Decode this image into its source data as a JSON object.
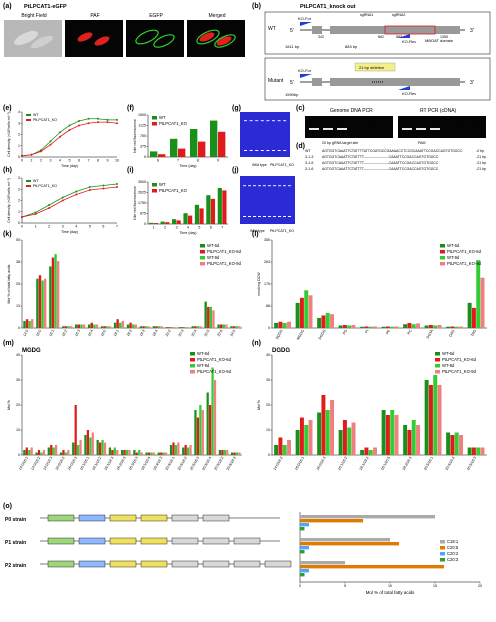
{
  "figure": {
    "a": {
      "panel": "(a)",
      "title": "PtLPCAT1-eGFP",
      "cols": [
        "Bright Field",
        "PAF",
        "EGFP",
        "Merged"
      ]
    },
    "b": {
      "panel": "(b)",
      "title": "PtLPCAT1_knock out",
      "wt": "WT",
      "mutant": "Mutant",
      "five": "5'",
      "three": "3'",
      "ko_for": "KO-For",
      "ko_rev": "KO-Rev",
      "sg1": "sgRNA1",
      "sg2": "sgRNA2",
      "mboat": "MBOAT  domain",
      "n342": "342",
      "n862": "862",
      "n883": "883",
      "n1350": "1350",
      "bp1611": "1611 bp",
      "bp883": "883 bp",
      "deletion": "21 bp deletion",
      "bp1590": "1590bp"
    },
    "c": {
      "panel": "(c)",
      "genomic": "Genome DNA PCR",
      "rt": "RT PCR (cDNA)",
      "lanes": [
        "1",
        "2",
        "3",
        "4",
        "5",
        "6"
      ]
    },
    "d": {
      "panel": "(d)",
      "guide": "20 bp gRNA target site",
      "pam": "PAM",
      "rows": [
        {
          "name": "WT",
          "seq": "AGTGGTCAAATTCTATTTTATTCGATGCCGAAAACCTCCGCAAATTCCGACCAGTGTGGCC",
          "note": "-0 bp"
        },
        {
          "name": "3-1-3",
          "seq": "AGTGGTCAAATTCTATTTT----------------------CAAATTCCGACCAGTGTGGCC",
          "note": "-21 bp"
        },
        {
          "name": "3-1-5",
          "seq": "AGTGGTCAAATTCTATTTT----------------------CAAATTCCGACCAGTGTGGCC",
          "note": "-21 bp"
        },
        {
          "name": "3-1-6",
          "seq": "AGTGGTCAAATTCTATTTT----------------------CAAATTCCGACCAGTGTGGCC",
          "note": "-21 bp"
        }
      ]
    },
    "e": {
      "panel": "(e)",
      "xlabel": "Time (day)",
      "ylabel": "Cell density (×10⁶cells·ml⁻¹)"
    },
    "f": {
      "panel": "(f)",
      "xlabel": "Time (day)",
      "ylabel": "Nile red fluorescence"
    },
    "g": {
      "panel": "(g)",
      "wt": "Wild type",
      "ko": "PtLPCAT1_KO",
      "days": [
        "6d",
        "7d",
        "8d",
        "9d",
        "6d",
        "7d",
        "8d",
        "9d"
      ],
      "tag": "TAG"
    },
    "h": {
      "panel": "(h)",
      "xlabel": "Time (day)",
      "ylabel": "Cell density (×10⁶cells·ml⁻¹)"
    },
    "i": {
      "panel": "(i)",
      "xlabel": "Time (day)",
      "ylabel": "Nile red fluorescence"
    },
    "j": {
      "panel": "(j)",
      "wt": "Wild type",
      "ko": "PtLPCAT1_KO",
      "days": [
        "3d",
        "4d",
        "5d",
        "6d",
        "7d",
        "3d",
        "4d",
        "5d",
        "6d",
        "7d"
      ]
    },
    "k": {
      "panel": "(k)",
      "ylabel": "Mol % of total fatty acids"
    },
    "l": {
      "panel": "(l)",
      "ylabel": "nmol/mg DCW"
    },
    "m": {
      "panel": "(m)",
      "title": "MGDG",
      "ylabel": "Mol %"
    },
    "n": {
      "panel": "(n)",
      "title": "DGDG",
      "ylabel": "Mol %"
    },
    "o": {
      "panel": "(o)",
      "xlabel": "Mol % of total fatty acids",
      "strains": [
        "P0 strain",
        "P1 strain",
        "P2 strain"
      ],
      "legend": [
        "C18:1",
        "C20:5",
        "C20:2",
        "C20:3"
      ]
    }
  },
  "chart_data": [
    {
      "type": "line",
      "panel": "e",
      "xlabel": "Time (day)",
      "ylabel": "Cell density (×10⁶cells·ml⁻¹)",
      "x": [
        0,
        1,
        2,
        3,
        4,
        5,
        6,
        7,
        8,
        9,
        10
      ],
      "ylim": [
        0,
        4
      ],
      "series": [
        {
          "name": "WT",
          "values": [
            0.1,
            0.2,
            0.6,
            1.4,
            2.2,
            2.8,
            3.2,
            3.4,
            3.4,
            3.3,
            3.3
          ]
        },
        {
          "name": "PtLPCAT1_KO",
          "values": [
            0.1,
            0.2,
            0.5,
            1.1,
            1.8,
            2.4,
            2.8,
            3.0,
            3.1,
            3.1,
            3.0
          ]
        }
      ]
    },
    {
      "type": "bar",
      "panel": "f",
      "xlabel": "Time (day)",
      "ylabel": "Nile red fluorescence",
      "categories": [
        "6",
        "7",
        "8",
        "9"
      ],
      "ylim": [
        0,
        1500
      ],
      "series": [
        {
          "name": "WT",
          "values": [
            200,
            650,
            1000,
            1300
          ]
        },
        {
          "name": "PtLPCAT1_KO",
          "values": [
            100,
            300,
            550,
            900
          ]
        }
      ]
    },
    {
      "type": "line",
      "panel": "h",
      "xlabel": "Time (day)",
      "ylabel": "Cell density (×10⁶cells·ml⁻¹)",
      "x": [
        0,
        1,
        2,
        3,
        4,
        5,
        6,
        7
      ],
      "ylim": [
        0,
        3
      ],
      "series": [
        {
          "name": "WT",
          "values": [
            0.4,
            0.7,
            1.2,
            1.7,
            2.1,
            2.4,
            2.5,
            2.6
          ]
        },
        {
          "name": "PtLPCAT1_KO",
          "values": [
            0.4,
            0.6,
            1.0,
            1.5,
            1.9,
            2.2,
            2.3,
            2.4
          ]
        }
      ]
    },
    {
      "type": "bar",
      "panel": "i",
      "xlabel": "Time (day)",
      "ylabel": "Nile red fluorescence",
      "categories": [
        "1",
        "2",
        "3",
        "4",
        "5",
        "6",
        "7"
      ],
      "ylim": [
        0,
        3500
      ],
      "series": [
        {
          "name": "WT",
          "values": [
            100,
            200,
            400,
            900,
            1600,
            2400,
            3000
          ]
        },
        {
          "name": "PtLPCAT1_KO",
          "values": [
            80,
            150,
            300,
            700,
            1300,
            2100,
            2800
          ]
        }
      ]
    },
    {
      "type": "bar",
      "panel": "k",
      "ylabel": "Mol % of total fatty acids",
      "categories": [
        "14:0",
        "16:0",
        "16:1",
        "16:2",
        "16:3",
        "16:4",
        "18:0",
        "18:1",
        "18:2",
        "18:3",
        "18:4",
        "20:2",
        "20:3",
        "20:4",
        "20:5",
        "22:6",
        "24:0"
      ],
      "ylim": [
        0,
        50
      ],
      "series": [
        {
          "name": "WT-6d",
          "values": [
            4,
            28,
            35,
            1,
            2,
            2,
            1,
            3,
            2,
            1,
            1,
            0.5,
            0.5,
            1,
            15,
            2,
            1
          ]
        },
        {
          "name": "PtLPCAT1_KO-6d",
          "values": [
            5,
            30,
            40,
            1,
            2,
            3,
            1,
            5,
            3,
            1,
            1,
            0.5,
            0.5,
            1,
            12,
            2,
            1
          ]
        },
        {
          "name": "WT-9d",
          "values": [
            4,
            27,
            42,
            1,
            2,
            2,
            1,
            3,
            2,
            1,
            1,
            0.5,
            0.5,
            1,
            12,
            2,
            1
          ]
        },
        {
          "name": "PtLPCAT1_KO-9d",
          "values": [
            5,
            28,
            38,
            1,
            2,
            2,
            1,
            4,
            2,
            1,
            1,
            0.5,
            0.5,
            1,
            10,
            2,
            1
          ]
        }
      ]
    },
    {
      "type": "bar",
      "panel": "l",
      "ylabel": "nmol/mg DCW",
      "categories": [
        "SQDG",
        "MGDG",
        "DGDG",
        "PG",
        "PI",
        "PE",
        "PC",
        "DGTA",
        "DAG",
        "TAG"
      ],
      "ylim": [
        0,
        350
      ],
      "series": [
        {
          "name": "WT-6d",
          "values": [
            20,
            100,
            40,
            10,
            5,
            5,
            15,
            10,
            5,
            100
          ]
        },
        {
          "name": "PtLPCAT1_KO-6d",
          "values": [
            25,
            120,
            50,
            12,
            6,
            6,
            20,
            12,
            6,
            80
          ]
        },
        {
          "name": "WT-9d",
          "values": [
            20,
            150,
            60,
            10,
            5,
            5,
            15,
            10,
            5,
            270
          ]
        },
        {
          "name": "PtLPCAT1_KO-9d",
          "values": [
            25,
            130,
            55,
            12,
            6,
            6,
            18,
            12,
            6,
            200
          ]
        }
      ]
    },
    {
      "type": "bar",
      "panel": "m",
      "title": "MGDG",
      "ylabel": "Mol %",
      "categories": [
        "14:0/16:1",
        "14:0/16:2",
        "14:0/16:3",
        "16:0/16:2",
        "16:0/16:3",
        "16:1/16:1",
        "16:1/16:2",
        "16:1/16:3",
        "16:2/16:3",
        "16:3/16:3",
        "18:1/16:4",
        "18:4/16:3",
        "20:5/16:1",
        "20:5/16:2",
        "20:5/16:3",
        "20:5/16:4",
        "20:5/18:2",
        "20:5/18:3"
      ],
      "ylim": [
        0,
        40
      ],
      "series": [
        {
          "name": "WT-6d",
          "values": [
            2,
            1,
            3,
            1,
            5,
            8,
            6,
            3,
            2,
            2,
            1,
            1,
            4,
            3,
            18,
            25,
            2,
            1
          ]
        },
        {
          "name": "PtLPCAT1_KO-6d",
          "values": [
            3,
            2,
            4,
            2,
            20,
            10,
            5,
            2,
            2,
            1,
            1,
            1,
            5,
            4,
            15,
            20,
            2,
            1
          ]
        },
        {
          "name": "WT-9d",
          "values": [
            2,
            1,
            3,
            1,
            4,
            7,
            6,
            3,
            2,
            2,
            1,
            1,
            4,
            3,
            20,
            35,
            2,
            1
          ]
        },
        {
          "name": "PtLPCAT1_KO-9d",
          "values": [
            3,
            2,
            4,
            2,
            6,
            9,
            5,
            2,
            2,
            1,
            1,
            1,
            5,
            4,
            18,
            30,
            2,
            1
          ]
        }
      ]
    },
    {
      "type": "bar",
      "panel": "n",
      "title": "DGDG",
      "ylabel": "Mol %",
      "categories": [
        "14:0/16:2",
        "16:0/16:1",
        "16:0/16:3",
        "16:1/16:2",
        "16:1/18:2",
        "16:1/20:5",
        "18:2/16:3",
        "20:5/16:1",
        "20:5/16:2",
        "20:5/16:3"
      ],
      "ylim": [
        0,
        40
      ],
      "series": [
        {
          "name": "WT-6d",
          "values": [
            4,
            10,
            17,
            10,
            2,
            18,
            12,
            30,
            9,
            3
          ]
        },
        {
          "name": "PtLPCAT1_KO-6d",
          "values": [
            7,
            15,
            24,
            14,
            3,
            16,
            10,
            28,
            8,
            3
          ]
        },
        {
          "name": "WT-9d",
          "values": [
            4,
            12,
            18,
            11,
            2,
            18,
            14,
            32,
            9,
            3
          ]
        },
        {
          "name": "PtLPCAT1_KO-9d",
          "values": [
            6,
            14,
            22,
            13,
            3,
            16,
            12,
            28,
            8,
            3
          ]
        }
      ]
    },
    {
      "type": "bar",
      "panel": "o",
      "xlabel": "Mol % of total fatty acids",
      "categories": [
        "P0 strain",
        "P1 strain",
        "P2 strain"
      ],
      "xlim": [
        0,
        20
      ],
      "series": [
        {
          "name": "C18:1",
          "values": [
            15,
            10,
            5
          ]
        },
        {
          "name": "C20:5",
          "values": [
            7,
            11,
            16
          ]
        },
        {
          "name": "C20:2",
          "values": [
            1,
            1,
            1
          ]
        },
        {
          "name": "C20:3",
          "values": [
            0.5,
            0.5,
            0.5
          ]
        }
      ]
    }
  ],
  "colors": {
    "wt": "#1a8f1a",
    "ko": "#e01b1b",
    "wt9": "#33cc33",
    "ko9": "#f08080",
    "c181": "#aaaaaa",
    "c205": "#e07b00",
    "c202": "#4da6ff",
    "c203": "#2ca02c"
  }
}
